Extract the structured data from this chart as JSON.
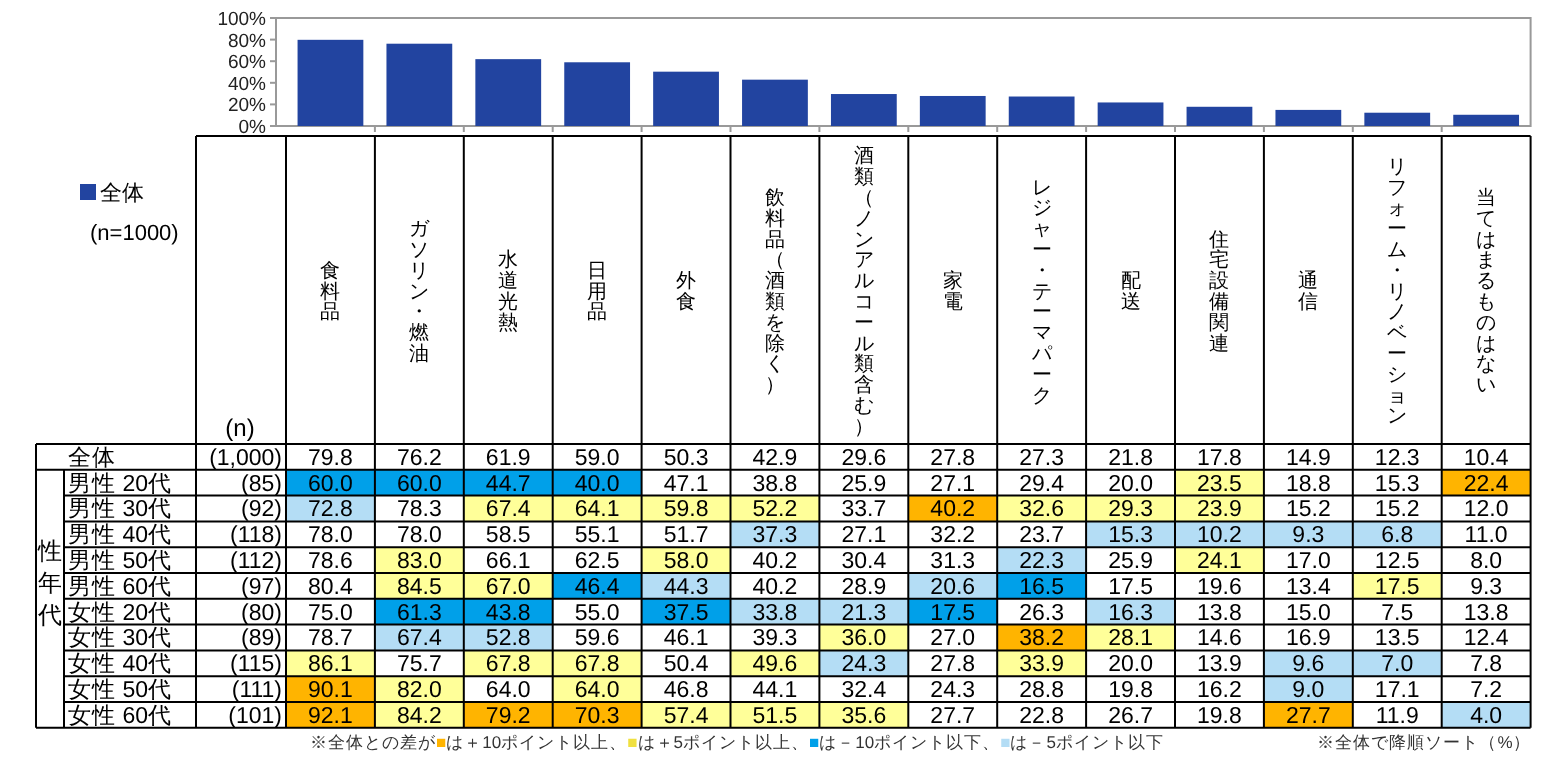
{
  "chart_data": [
    {
      "type": "bar",
      "categories": [
        null,
        null,
        null,
        null,
        null,
        null,
        null,
        null,
        null,
        null,
        null,
        null,
        null,
        null
      ],
      "series": [
        {
          "name": "全体",
          "color": "#2244a0",
          "values": [
            79.8,
            76.2,
            61.9,
            59.0,
            50.3,
            42.9,
            29.6,
            27.8,
            27.3,
            21.8,
            17.8,
            14.9,
            12.3,
            10.4
          ]
        }
      ],
      "ylim": [
        0,
        100
      ],
      "yticks": [
        {
          "value": 0,
          "label": "0%"
        },
        {
          "value": 20,
          "label": "20%"
        },
        {
          "value": 40,
          "label": "40%"
        },
        {
          "value": 60,
          "label": "60%"
        },
        {
          "value": 80,
          "label": "80%"
        },
        {
          "value": 100,
          "label": "100%"
        }
      ],
      "legend": "bottom left",
      "annotations": [
        "(n=1000)"
      ]
    },
    {
      "type": "heatmap",
      "categories": [
        "食料品",
        "ガソリン・燃油",
        "水道光熱",
        "日用品",
        "外食",
        "飲料品（酒類を除く）",
        "酒類（ノンアルコール類含む）",
        "家電",
        "レジャー・テーマパーク",
        "配送",
        "住宅設備関連",
        "通信",
        "リフォーム・リノベーション",
        "当てはまるものはない"
      ],
      "y_categories": [
        "全体",
        "男性 20代",
        "男性 30代",
        "男性 40代",
        "男性 50代",
        "男性 60代",
        "女性 20代",
        "女性 30代",
        "女性 40代",
        "女性 50代",
        "女性 60代"
      ],
      "y2_categories": [
        "(1,000)",
        "(85)",
        "(92)",
        "(118)",
        "(112)",
        "(97)",
        "(80)",
        "(89)",
        "(115)",
        "(111)",
        "(101)"
      ],
      "cells": [
        [
          79.8,
          76.2,
          61.9,
          59.0,
          50.3,
          42.9,
          29.6,
          27.8,
          27.3,
          21.8,
          17.8,
          14.9,
          12.3,
          10.4
        ],
        [
          60.0,
          60.0,
          44.7,
          40.0,
          47.1,
          38.8,
          25.9,
          27.1,
          29.4,
          20.0,
          23.5,
          18.8,
          15.3,
          22.4
        ],
        [
          72.8,
          78.3,
          67.4,
          64.1,
          59.8,
          52.2,
          33.7,
          40.2,
          32.6,
          29.3,
          23.9,
          15.2,
          15.2,
          12.0
        ],
        [
          78.0,
          78.0,
          58.5,
          55.1,
          51.7,
          37.3,
          27.1,
          32.2,
          23.7,
          15.3,
          10.2,
          9.3,
          6.8,
          11.0
        ],
        [
          78.6,
          83.0,
          66.1,
          62.5,
          58.0,
          40.2,
          30.4,
          31.3,
          22.3,
          25.9,
          24.1,
          17.0,
          12.5,
          8.0
        ],
        [
          80.4,
          84.5,
          67.0,
          46.4,
          44.3,
          40.2,
          28.9,
          20.6,
          16.5,
          17.5,
          19.6,
          13.4,
          17.5,
          9.3
        ],
        [
          75.0,
          61.3,
          43.8,
          55.0,
          37.5,
          33.8,
          21.3,
          17.5,
          26.3,
          16.3,
          13.8,
          15.0,
          7.5,
          13.8
        ],
        [
          78.7,
          67.4,
          52.8,
          59.6,
          46.1,
          39.3,
          36.0,
          27.0,
          38.2,
          28.1,
          14.6,
          16.9,
          13.5,
          12.4
        ],
        [
          86.1,
          75.7,
          67.8,
          67.8,
          50.4,
          49.6,
          24.3,
          27.8,
          33.9,
          20.0,
          13.9,
          9.6,
          7.0,
          7.8
        ],
        [
          90.1,
          82.0,
          64.0,
          64.0,
          46.8,
          44.1,
          32.4,
          24.3,
          28.8,
          19.8,
          16.2,
          9.0,
          17.1,
          7.2
        ],
        [
          92.1,
          84.2,
          79.2,
          70.3,
          57.4,
          51.5,
          35.6,
          27.7,
          22.8,
          26.7,
          19.8,
          27.7,
          11.9,
          4.0
        ]
      ],
      "cell_labels": [
        [
          "79.8",
          "76.2",
          "61.9",
          "59.0",
          "50.3",
          "42.9",
          "29.6",
          "27.8",
          "27.3",
          "21.8",
          "17.8",
          "14.9",
          "12.3",
          "10.4"
        ],
        [
          "60.0",
          "60.0",
          "44.7",
          "40.0",
          "47.1",
          "38.8",
          "25.9",
          "27.1",
          "29.4",
          "20.0",
          "23.5",
          "18.8",
          "15.3",
          "22.4"
        ],
        [
          "72.8",
          "78.3",
          "67.4",
          "64.1",
          "59.8",
          "52.2",
          "33.7",
          "40.2",
          "32.6",
          "29.3",
          "23.9",
          "15.2",
          "15.2",
          "12.0"
        ],
        [
          "78.0",
          "78.0",
          "58.5",
          "55.1",
          "51.7",
          "37.3",
          "27.1",
          "32.2",
          "23.7",
          "15.3",
          "10.2",
          "9.3",
          "6.8",
          "11.0"
        ],
        [
          "78.6",
          "83.0",
          "66.1",
          "62.5",
          "58.0",
          "40.2",
          "30.4",
          "31.3",
          "22.3",
          "25.9",
          "24.1",
          "17.0",
          "12.5",
          "8.0"
        ],
        [
          "80.4",
          "84.5",
          "67.0",
          "46.4",
          "44.3",
          "40.2",
          "28.9",
          "20.6",
          "16.5",
          "17.5",
          "19.6",
          "13.4",
          "17.5",
          "9.3"
        ],
        [
          "75.0",
          "61.3",
          "43.8",
          "55.0",
          "37.5",
          "33.8",
          "21.3",
          "17.5",
          "26.3",
          "16.3",
          "13.8",
          "15.0",
          "7.5",
          "13.8"
        ],
        [
          "78.7",
          "67.4",
          "52.8",
          "59.6",
          "46.1",
          "39.3",
          "36.0",
          "27.0",
          "38.2",
          "28.1",
          "14.6",
          "16.9",
          "13.5",
          "12.4"
        ],
        [
          "86.1",
          "75.7",
          "67.8",
          "67.8",
          "50.4",
          "49.6",
          "24.3",
          "27.8",
          "33.9",
          "20.0",
          "13.9",
          "9.6",
          "7.0",
          "7.8"
        ],
        [
          "90.1",
          "82.0",
          "64.0",
          "64.0",
          "46.8",
          "44.1",
          "32.4",
          "24.3",
          "28.8",
          "19.8",
          "16.2",
          "9.0",
          "17.1",
          "7.2"
        ],
        [
          "92.1",
          "84.2",
          "79.2",
          "70.3",
          "57.4",
          "51.5",
          "35.6",
          "27.7",
          "22.8",
          "26.7",
          "19.8",
          "27.7",
          "11.9",
          "4.0"
        ]
      ],
      "annotations": [
        "(n)",
        "性年代",
        "※全体との差が■は＋10ポイント以上、■は＋5ポイント以上、■は－10ポイント以下、■は－5ポイント以下",
        "※全体で降順ソート（%）"
      ]
    }
  ]
}
